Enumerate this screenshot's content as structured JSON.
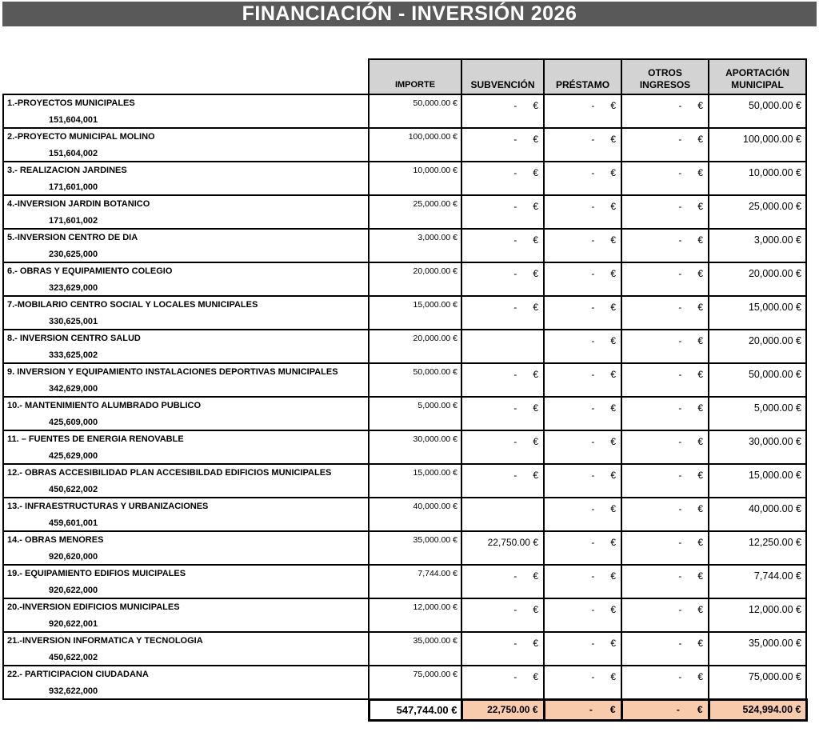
{
  "title": "FINANCIACIÓN - INVERSIÓN 2026",
  "table": {
    "header": {
      "importe": "IMPORTE",
      "subvencion": "SUBVENCIÓN",
      "prestamo": "PRÉSTAMO",
      "otros_line1": "OTROS",
      "otros_line2": "INGRESOS",
      "aportacion_line1": "APORTACIÓN",
      "aportacion_line2": "MUNICIPAL"
    },
    "currency_symbol": "€",
    "dash_symbol": "-",
    "rows": [
      {
        "name": "1.-PROYECTOS MUNICIPALES",
        "code": "151,604,001",
        "importe": "50,000.00 €",
        "subvencion": "-",
        "prestamo": "-",
        "otros": "-",
        "aportacion": "50,000.00 €"
      },
      {
        "name": "2.-PROYECTO MUNICIPAL MOLINO",
        "code": "151,604,002",
        "importe": "100,000.00 €",
        "subvencion": "-",
        "prestamo": "-",
        "otros": "-",
        "aportacion": "100,000.00 €"
      },
      {
        "name": "3.- REALIZACION JARDINES",
        "code": "171,601,000",
        "importe": "10,000.00 €",
        "subvencion": "-",
        "prestamo": "-",
        "otros": "-",
        "aportacion": "10,000.00 €"
      },
      {
        "name": "4.-INVERSION JARDIN BOTANICO",
        "code": "171,601,002",
        "importe": "25,000.00 €",
        "subvencion": "-",
        "prestamo": "-",
        "otros": "-",
        "aportacion": "25,000.00 €"
      },
      {
        "name": "5.-INVERSION CENTRO DE DIA",
        "code": "230,625,000",
        "importe": "3,000.00 €",
        "subvencion": "-",
        "prestamo": "-",
        "otros": "-",
        "aportacion": "3,000.00 €"
      },
      {
        "name": "6.- OBRAS Y EQUIPAMIENTO COLEGIO",
        "code": "323,629,000",
        "importe": "20,000.00 €",
        "subvencion": "-",
        "prestamo": "-",
        "otros": "-",
        "aportacion": "20,000.00 €"
      },
      {
        "name": "7.-MOBILARIO CENTRO SOCIAL Y LOCALES MUNICIPALES",
        "code": "330,625,001",
        "importe": "15,000.00 €",
        "subvencion": "-",
        "prestamo": "-",
        "otros": "-",
        "aportacion": "15,000.00 €"
      },
      {
        "name": "8.- INVERSION CENTRO SALUD",
        "code": "333,625,002",
        "importe": "20,000.00 €",
        "subvencion": "",
        "prestamo": "-",
        "otros": "-",
        "aportacion": "20,000.00 €"
      },
      {
        "name": "9. INVERSION Y EQUIPAMIENTO INSTALACIONES DEPORTIVAS MUNICIPALES",
        "code": "342,629,000",
        "importe": "50,000.00 €",
        "subvencion": "-",
        "prestamo": "-",
        "otros": "-",
        "aportacion": "50,000.00 €"
      },
      {
        "name": "10.- MANTENIMIENTO ALUMBRADO PUBLICO",
        "code": "425,609,000",
        "importe": "5,000.00 €",
        "subvencion": "-",
        "prestamo": "-",
        "otros": "-",
        "aportacion": "5,000.00 €"
      },
      {
        "name": "11. – FUENTES DE ENERGIA RENOVABLE",
        "code": "425,629,000",
        "importe": "30,000.00 €",
        "subvencion": "-",
        "prestamo": "-",
        "otros": "-",
        "aportacion": "30,000.00 €"
      },
      {
        "name": "12.- OBRAS ACCESIBILIDAD PLAN ACCESIBILDAD EDIFICIOS MUNICIPALES",
        "code": "450,622,002",
        "importe": "15,000.00 €",
        "subvencion": "-",
        "prestamo": "-",
        "otros": "-",
        "aportacion": "15,000.00 €"
      },
      {
        "name": "13.- INFRAESTRUCTURAS Y URBANIZACIONES",
        "code": "459,601,001",
        "importe": "40,000.00 €",
        "subvencion": "",
        "prestamo": "-",
        "otros": "-",
        "aportacion": "40,000.00 €"
      },
      {
        "name": "14.- OBRAS MENORES",
        "code": "920,620,000",
        "importe": "35,000.00 €",
        "subvencion": "22,750.00 €",
        "prestamo": "-",
        "otros": "-",
        "aportacion": "12,250.00 €"
      },
      {
        "name": "19.- EQUIPAMIENTO EDIFIOS MUICIPALES",
        "code": "920,622,000",
        "importe": "7,744.00 €",
        "subvencion": "-",
        "prestamo": "-",
        "otros": "-",
        "aportacion": "7,744.00 €"
      },
      {
        "name": "20.-INVERSION EDIFICIOS MUNICIPALES",
        "code": "920,622,001",
        "importe": "12,000.00 €",
        "subvencion": "-",
        "prestamo": "-",
        "otros": "-",
        "aportacion": "12,000.00 €"
      },
      {
        "name": "21.-INVERSION INFORMATICA Y TECNOLOGIA",
        "code": "450,622,002",
        "importe": "35,000.00 €",
        "subvencion": "-",
        "prestamo": "-",
        "otros": "-",
        "aportacion": "35,000.00 €"
      },
      {
        "name": "22.- PARTICIPACION CIUDADANA",
        "code": "932,622,000",
        "importe": "75,000.00 €",
        "subvencion": "-",
        "prestamo": "-",
        "otros": "-",
        "aportacion": "75,000.00 €"
      }
    ],
    "totals": {
      "importe": "547,744.00 €",
      "subvencion": "22,750.00 €",
      "prestamo": "-",
      "otros": "-",
      "aportacion": "524,994.00 €"
    },
    "colors": {
      "title_bg": "#595959",
      "header_bg": "#d3d3d3",
      "totals_bg": "#f8cbad",
      "border": "#000000"
    }
  }
}
